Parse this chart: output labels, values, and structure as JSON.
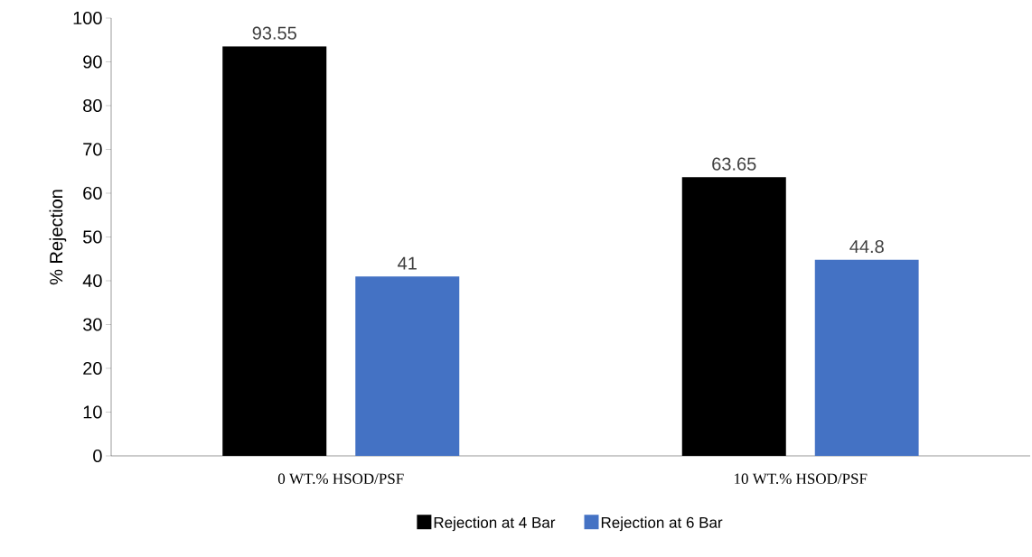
{
  "chart_data": {
    "type": "bar",
    "ylabel": "% Rejection",
    "categories": [
      "0 WT.% HSOD/PSF",
      "10 WT.% HSOD/PSF"
    ],
    "series": [
      {
        "name": "Rejection at 4 Bar",
        "color": "#000000",
        "values": [
          93.55,
          63.65
        ]
      },
      {
        "name": "Rejection at 6 Bar",
        "color": "#4472c4",
        "values": [
          41,
          44.8
        ]
      }
    ],
    "ylim": [
      0,
      100
    ],
    "yticks": [
      0,
      10,
      20,
      30,
      40,
      50,
      60,
      70,
      80,
      90,
      100
    ],
    "data_labels": true,
    "grid": false,
    "legend": "bottom"
  }
}
